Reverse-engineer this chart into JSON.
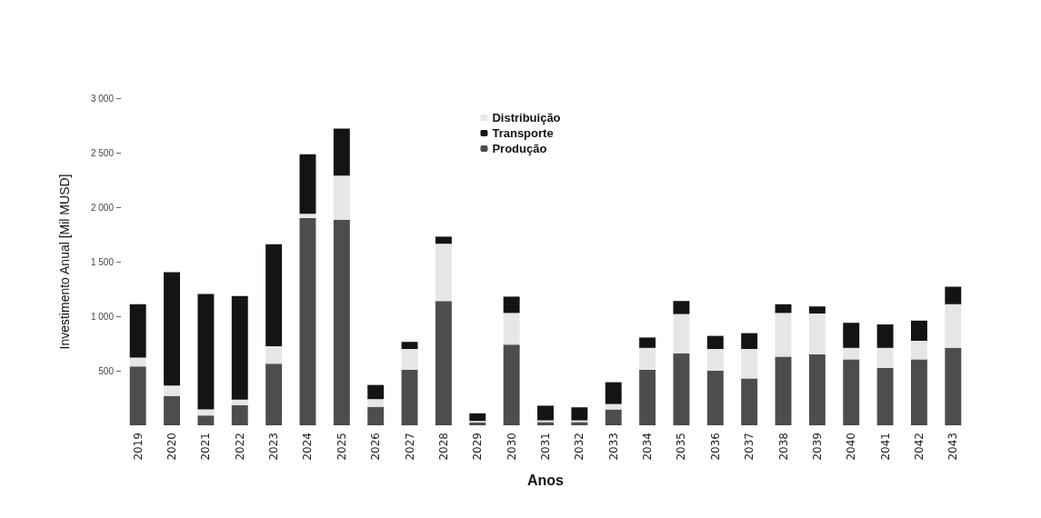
{
  "chart_data": {
    "type": "bar",
    "stacked": true,
    "xlabel": "Anos",
    "ylabel": "Investimento Anual [Mil MUSD]",
    "categories": [
      "2019",
      "2020",
      "2021",
      "2022",
      "2023",
      "2024",
      "2025",
      "2026",
      "2027",
      "2028",
      "2029",
      "2030",
      "2031",
      "2032",
      "2033",
      "2034",
      "2035",
      "2036",
      "2037",
      "2038",
      "2039",
      "2040",
      "2041",
      "2042",
      "2043"
    ],
    "series": [
      {
        "name": "Produção",
        "color": "#4d4d4d",
        "values": [
          540,
          270,
          90,
          185,
          565,
          1900,
          1885,
          170,
          510,
          1140,
          25,
          740,
          30,
          30,
          145,
          510,
          660,
          500,
          430,
          630,
          650,
          605,
          525,
          605,
          710
        ]
      },
      {
        "name": "Distribuição",
        "color": "#e6e6e6",
        "values": [
          80,
          95,
          55,
          50,
          160,
          40,
          405,
          70,
          190,
          525,
          15,
          290,
          15,
          15,
          50,
          200,
          360,
          200,
          270,
          400,
          375,
          105,
          185,
          170,
          400
        ]
      },
      {
        "name": "Transporte",
        "color": "#141414",
        "values": [
          490,
          1040,
          1060,
          950,
          935,
          545,
          430,
          130,
          65,
          65,
          70,
          150,
          135,
          120,
          200,
          95,
          120,
          120,
          145,
          80,
          65,
          230,
          215,
          185,
          160
        ]
      }
    ],
    "ylim": [
      0,
      3000
    ],
    "yticks": [
      {
        "value": 500,
        "label": "500"
      },
      {
        "value": 1000,
        "label": "1 000"
      },
      {
        "value": 1500,
        "label": "1 500"
      },
      {
        "value": 2000,
        "label": "2 000"
      },
      {
        "value": 2500,
        "label": "2 500"
      },
      {
        "value": 3000,
        "label": "3 000"
      }
    ],
    "grid": false,
    "legend": "top"
  }
}
